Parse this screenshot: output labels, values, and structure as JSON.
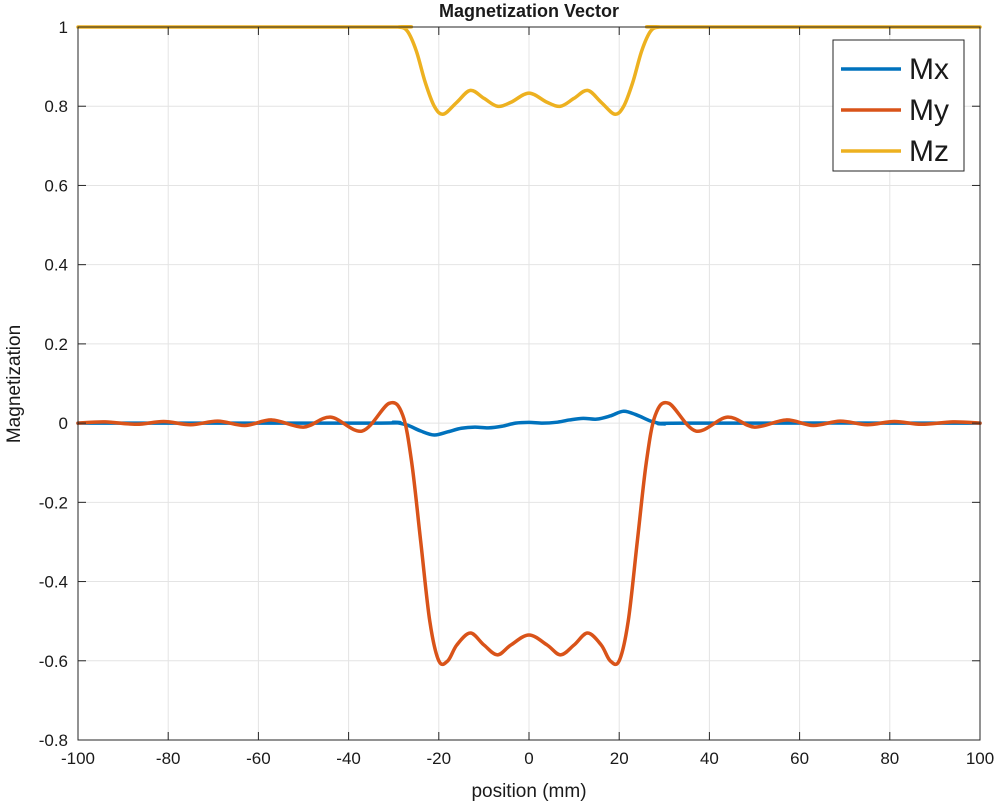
{
  "chart_data": {
    "type": "line",
    "title": "Magnetization Vector",
    "xlabel": "position (mm)",
    "ylabel": "Magnetization",
    "xlim": [
      -100,
      100
    ],
    "ylim": [
      -0.8,
      1
    ],
    "xticks": [
      -100,
      -80,
      -60,
      -40,
      -20,
      0,
      20,
      40,
      60,
      80,
      100
    ],
    "yticks": [
      -0.8,
      -0.6,
      -0.4,
      -0.2,
      0,
      0.2,
      0.4,
      0.6,
      0.8,
      1
    ],
    "xtick_labels": [
      "-100",
      "-80",
      "-60",
      "-40",
      "-20",
      "0",
      "20",
      "40",
      "60",
      "80",
      "100"
    ],
    "ytick_labels": [
      "-0.8",
      "-0.6",
      "-0.4",
      "-0.2",
      "0",
      "0.2",
      "0.4",
      "0.6",
      "0.8",
      "1"
    ],
    "grid": true,
    "legend_position": "top-right",
    "series": [
      {
        "name": "Mx",
        "color": "#0072BD",
        "points": [
          [
            -100,
            0
          ],
          [
            -35,
            0
          ],
          [
            -30,
            0.002
          ],
          [
            -27,
            -0.005
          ],
          [
            -24,
            -0.02
          ],
          [
            -21,
            -0.03
          ],
          [
            -18,
            -0.022
          ],
          [
            -15,
            -0.013
          ],
          [
            -12,
            -0.01
          ],
          [
            -9,
            -0.012
          ],
          [
            -6,
            -0.008
          ],
          [
            -3,
            0
          ],
          [
            0,
            0.002
          ],
          [
            3,
            0
          ],
          [
            6,
            0.002
          ],
          [
            9,
            0.008
          ],
          [
            12,
            0.012
          ],
          [
            15,
            0.01
          ],
          [
            18,
            0.018
          ],
          [
            21,
            0.03
          ],
          [
            24,
            0.02
          ],
          [
            27,
            0.005
          ],
          [
            30,
            -0.002
          ],
          [
            35,
            0
          ],
          [
            100,
            0
          ]
        ]
      },
      {
        "name": "My",
        "color": "#D95319",
        "points": [
          [
            -100,
            0
          ],
          [
            -94,
            0.003
          ],
          [
            -87,
            -0.003
          ],
          [
            -81,
            0.004
          ],
          [
            -75,
            -0.004
          ],
          [
            -69,
            0.005
          ],
          [
            -63,
            -0.006
          ],
          [
            -57,
            0.008
          ],
          [
            -50,
            -0.01
          ],
          [
            -44,
            0.015
          ],
          [
            -37,
            -0.02
          ],
          [
            -31,
            0.05
          ],
          [
            -28,
            0.02
          ],
          [
            -26,
            -0.1
          ],
          [
            -24,
            -0.3
          ],
          [
            -22,
            -0.5
          ],
          [
            -20,
            -0.6
          ],
          [
            -18,
            -0.6
          ],
          [
            -16,
            -0.56
          ],
          [
            -13,
            -0.53
          ],
          [
            -10,
            -0.56
          ],
          [
            -7,
            -0.585
          ],
          [
            -4,
            -0.56
          ],
          [
            0,
            -0.535
          ],
          [
            4,
            -0.56
          ],
          [
            7,
            -0.585
          ],
          [
            10,
            -0.56
          ],
          [
            13,
            -0.53
          ],
          [
            16,
            -0.56
          ],
          [
            18,
            -0.6
          ],
          [
            20,
            -0.6
          ],
          [
            22,
            -0.5
          ],
          [
            24,
            -0.3
          ],
          [
            26,
            -0.1
          ],
          [
            28,
            0.02
          ],
          [
            31,
            0.05
          ],
          [
            37,
            -0.02
          ],
          [
            44,
            0.015
          ],
          [
            50,
            -0.01
          ],
          [
            57,
            0.008
          ],
          [
            63,
            -0.006
          ],
          [
            69,
            0.005
          ],
          [
            75,
            -0.004
          ],
          [
            81,
            0.004
          ],
          [
            87,
            -0.003
          ],
          [
            94,
            0.003
          ],
          [
            100,
            0
          ]
        ]
      },
      {
        "name": "Mz",
        "color": "#EDB120",
        "points": [
          [
            -100,
            1
          ],
          [
            -32,
            1
          ],
          [
            -29,
            1.0
          ],
          [
            -27,
            0.99
          ],
          [
            -25,
            0.94
          ],
          [
            -23,
            0.86
          ],
          [
            -21,
            0.8
          ],
          [
            -19,
            0.78
          ],
          [
            -16,
            0.81
          ],
          [
            -13,
            0.84
          ],
          [
            -10,
            0.82
          ],
          [
            -7,
            0.8
          ],
          [
            -4,
            0.81
          ],
          [
            0,
            0.833
          ],
          [
            4,
            0.81
          ],
          [
            7,
            0.8
          ],
          [
            10,
            0.82
          ],
          [
            13,
            0.84
          ],
          [
            16,
            0.81
          ],
          [
            19,
            0.78
          ],
          [
            21,
            0.8
          ],
          [
            23,
            0.86
          ],
          [
            25,
            0.94
          ],
          [
            27,
            0.99
          ],
          [
            29,
            1.0
          ],
          [
            32,
            1
          ],
          [
            100,
            1
          ]
        ]
      }
    ]
  }
}
